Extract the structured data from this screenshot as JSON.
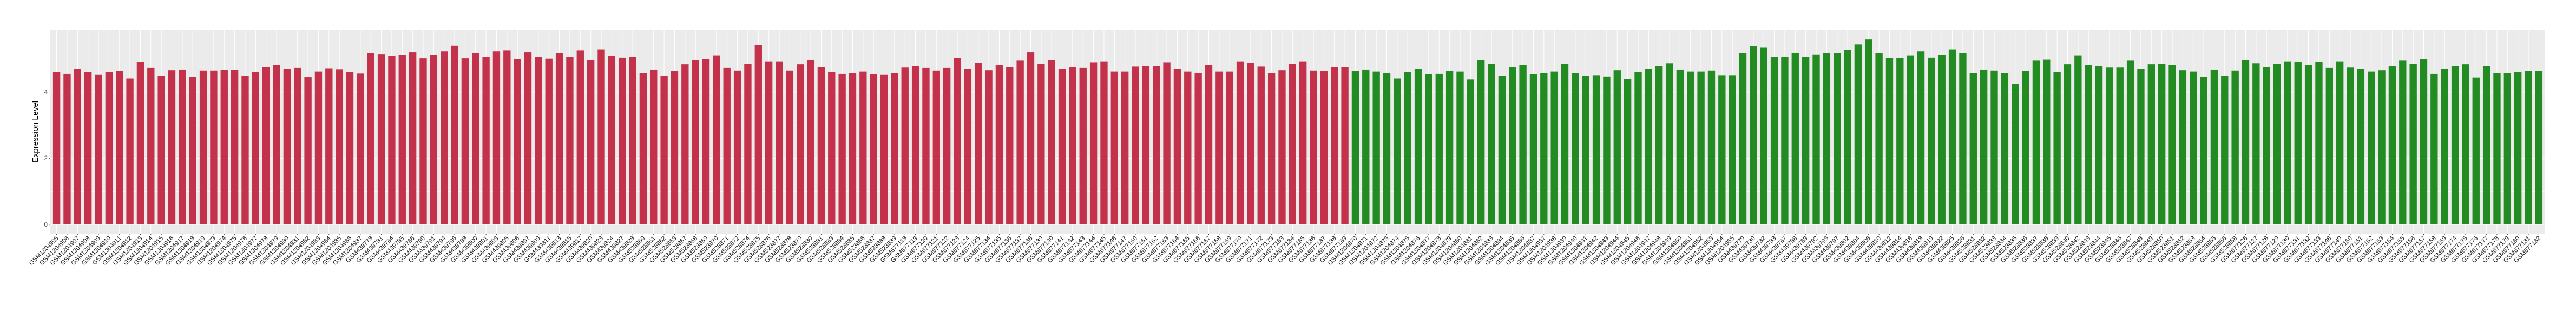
{
  "chart_data": {
    "type": "bar",
    "title": "",
    "xlabel": "",
    "ylabel": "Expression Level",
    "ylim": [
      -0.28,
      5.87
    ],
    "yticks": [
      "0",
      "2",
      "4"
    ],
    "grid": true,
    "legend": "none",
    "panel_background": "#EBEBEB",
    "series": [
      {
        "color": "#C3314A",
        "categories": [
          "GSM1304905",
          "GSM1304906",
          "GSM1304907",
          "GSM1304908",
          "GSM1304909",
          "GSM1304910",
          "GSM1304911",
          "GSM1304912",
          "GSM1304913",
          "GSM1304914",
          "GSM1304915",
          "GSM1304916",
          "GSM1304917",
          "GSM1304918",
          "GSM1304919",
          "GSM1304973",
          "GSM1304974",
          "GSM1304975",
          "GSM1304976",
          "GSM1304977",
          "GSM1304978",
          "GSM1304979",
          "GSM1304980",
          "GSM1304981",
          "GSM1304982",
          "GSM1304983",
          "GSM1304984",
          "GSM1304985",
          "GSM1304986",
          "GSM1304987",
          "GSM439778",
          "GSM439781",
          "GSM439784",
          "GSM439785",
          "GSM439786",
          "GSM439790",
          "GSM439791",
          "GSM439794",
          "GSM439796",
          "GSM439798",
          "GSM439800",
          "GSM439801",
          "GSM439803",
          "GSM439805",
          "GSM439806",
          "GSM439807",
          "GSM439809",
          "GSM439811",
          "GSM439813",
          "GSM439815",
          "GSM439817",
          "GSM439820",
          "GSM439823",
          "GSM439824",
          "GSM439827",
          "GSM439828",
          "GSM528860",
          "GSM528861",
          "GSM528862",
          "GSM528863",
          "GSM528867",
          "GSM528868",
          "GSM528869",
          "GSM528870",
          "GSM528871",
          "GSM528872",
          "GSM528874",
          "GSM528875",
          "GSM528876",
          "GSM528877",
          "GSM528878",
          "GSM528879",
          "GSM528880",
          "GSM528881",
          "GSM528883",
          "GSM528884",
          "GSM528885",
          "GSM528886",
          "GSM528887",
          "GSM528888",
          "GSM528889",
          "GSM677118",
          "GSM677119",
          "GSM677120",
          "GSM677121",
          "GSM677122",
          "GSM677123",
          "GSM677124",
          "GSM677125",
          "GSM677134",
          "GSM677135",
          "GSM677136",
          "GSM677137",
          "GSM677138",
          "GSM677139",
          "GSM677140",
          "GSM677141",
          "GSM677142",
          "GSM677143",
          "GSM677144",
          "GSM677145",
          "GSM677146",
          "GSM677147",
          "GSM677160",
          "GSM677161",
          "GSM677162",
          "GSM677163",
          "GSM677164",
          "GSM677165",
          "GSM677166",
          "GSM677167",
          "GSM677168",
          "GSM677169",
          "GSM677170",
          "GSM677171",
          "GSM677172",
          "GSM677173",
          "GSM677183",
          "GSM677184",
          "GSM677185",
          "GSM677186",
          "GSM677187",
          "GSM677188",
          "GSM677189"
        ],
        "values": [
          4.6,
          4.55,
          4.71,
          4.6,
          4.52,
          4.61,
          4.63,
          4.41,
          4.91,
          4.73,
          4.49,
          4.66,
          4.68,
          4.46,
          4.65,
          4.65,
          4.67,
          4.67,
          4.49,
          4.6,
          4.75,
          4.82,
          4.7,
          4.73,
          4.45,
          4.62,
          4.72,
          4.69,
          4.6,
          4.56,
          5.18,
          5.15,
          5.1,
          5.12,
          5.2,
          5.02,
          5.13,
          5.23,
          5.4,
          5.02,
          5.18,
          5.07,
          5.23,
          5.26,
          4.99,
          5.2,
          5.07,
          5.01,
          5.18,
          5.06,
          5.26,
          4.96,
          5.29,
          5.09,
          5.04,
          5.07,
          4.57,
          4.68,
          4.49,
          4.63,
          4.84,
          4.96,
          4.99,
          5.11,
          4.73,
          4.65,
          4.85,
          5.42,
          4.93,
          4.93,
          4.65,
          4.84,
          4.96,
          4.76,
          4.6,
          4.55,
          4.57,
          4.62,
          4.54,
          4.52,
          4.58,
          4.74,
          4.79,
          4.73,
          4.65,
          4.73,
          5.03,
          4.7,
          4.88,
          4.66,
          4.82,
          4.76,
          4.95,
          5.2,
          4.85,
          4.96,
          4.7,
          4.76,
          4.73,
          4.9,
          4.93,
          4.62,
          4.62,
          4.77,
          4.79,
          4.79,
          4.9,
          4.71,
          4.62,
          4.57,
          4.81,
          4.62,
          4.62,
          4.93,
          4.88,
          4.77,
          4.58,
          4.66,
          4.85,
          4.93,
          4.65,
          4.63,
          4.76,
          4.76
        ]
      },
      {
        "color": "#228B22",
        "categories": [
          "GSM1304870",
          "GSM1304871",
          "GSM1304872",
          "GSM1304873",
          "GSM1304874",
          "GSM1304875",
          "GSM1304876",
          "GSM1304877",
          "GSM1304878",
          "GSM1304879",
          "GSM1304880",
          "GSM1304881",
          "GSM1304882",
          "GSM1304883",
          "GSM1304884",
          "GSM1304885",
          "GSM1304886",
          "GSM1304887",
          "GSM1304937",
          "GSM1304938",
          "GSM1304939",
          "GSM1304940",
          "GSM1304941",
          "GSM1304942",
          "GSM1304943",
          "GSM1304944",
          "GSM1304945",
          "GSM1304946",
          "GSM1304947",
          "GSM1304948",
          "GSM1304949",
          "GSM1304950",
          "GSM1304951",
          "GSM1304952",
          "GSM1304953",
          "GSM1304954",
          "GSM1304955",
          "GSM439779",
          "GSM439780",
          "GSM439782",
          "GSM439783",
          "GSM439787",
          "GSM439788",
          "GSM439789",
          "GSM439792",
          "GSM439793",
          "GSM439797",
          "GSM439802",
          "GSM439804",
          "GSM439808",
          "GSM439810",
          "GSM439812",
          "GSM439814",
          "GSM439816",
          "GSM439818",
          "GSM439819",
          "GSM439822",
          "GSM439825",
          "GSM439826",
          "GSM528831",
          "GSM528832",
          "GSM528833",
          "GSM528834",
          "GSM528835",
          "GSM528836",
          "GSM528837",
          "GSM528838",
          "GSM528839",
          "GSM528840",
          "GSM528842",
          "GSM528843",
          "GSM528844",
          "GSM528845",
          "GSM528846",
          "GSM528847",
          "GSM528848",
          "GSM528849",
          "GSM528850",
          "GSM528851",
          "GSM528852",
          "GSM528853",
          "GSM528854",
          "GSM528855",
          "GSM528856",
          "GSM528858",
          "GSM677126",
          "GSM677127",
          "GSM677128",
          "GSM677129",
          "GSM677130",
          "GSM677131",
          "GSM677132",
          "GSM677133",
          "GSM677148",
          "GSM677149",
          "GSM677150",
          "GSM677151",
          "GSM677152",
          "GSM677153",
          "GSM677154",
          "GSM677155",
          "GSM677156",
          "GSM677157",
          "GSM677158",
          "GSM677159",
          "GSM677174",
          "GSM677175",
          "GSM677176",
          "GSM677177",
          "GSM677178",
          "GSM677179",
          "GSM677180",
          "GSM677181",
          "GSM677182"
        ],
        "values": [
          4.63,
          4.68,
          4.62,
          4.58,
          4.41,
          4.6,
          4.71,
          4.54,
          4.55,
          4.63,
          4.62,
          4.38,
          4.96,
          4.85,
          4.49,
          4.76,
          4.81,
          4.54,
          4.57,
          4.62,
          4.85,
          4.58,
          4.49,
          4.51,
          4.47,
          4.66,
          4.39,
          4.6,
          4.71,
          4.79,
          4.87,
          4.68,
          4.62,
          4.62,
          4.65,
          4.51,
          4.51,
          5.18,
          5.39,
          5.34,
          5.06,
          5.06,
          5.18,
          5.06,
          5.14,
          5.18,
          5.18,
          5.28,
          5.44,
          5.59,
          5.17,
          5.03,
          5.03,
          5.11,
          5.23,
          5.04,
          5.12,
          5.29,
          5.18,
          4.57,
          4.68,
          4.65,
          4.57,
          4.24,
          4.63,
          4.95,
          4.98,
          4.6,
          4.84,
          5.11,
          4.81,
          4.79,
          4.74,
          4.74,
          4.95,
          4.71,
          4.84,
          4.85,
          4.82,
          4.66,
          4.62,
          4.46,
          4.68,
          4.49,
          4.65,
          4.96,
          4.87,
          4.76,
          4.85,
          4.93,
          4.92,
          4.82,
          4.92,
          4.73,
          4.93,
          4.74,
          4.71,
          4.62,
          4.66,
          4.79,
          4.95,
          4.85,
          4.99,
          4.55,
          4.71,
          4.79,
          4.84,
          4.44,
          4.79,
          4.58,
          4.58,
          4.61,
          4.63,
          4.63
        ]
      }
    ]
  }
}
